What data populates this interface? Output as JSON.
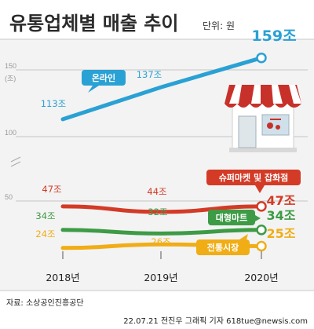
{
  "header": {
    "title": "유통업체별 매출 추이",
    "unit": "단위: 원"
  },
  "footer": {
    "source": "자료: 소상공인진흥공단",
    "credit": "22.07.21 전진우 그래픽 기자 618tue@newsis.com"
  },
  "colors": {
    "online": "#2aa1d4",
    "convenience": "#d33b27",
    "mart": "#3d9b46",
    "market": "#f0ad16",
    "panel": "#f3f3f3"
  },
  "icon": "store-icon",
  "chart_data": {
    "type": "line",
    "x": [
      "2018년",
      "2019년",
      "2020년"
    ],
    "y_ticks": [
      {
        "value": 150,
        "label": "150"
      },
      {
        "value": 100,
        "label": "100"
      },
      {
        "value": 50,
        "label": "50"
      }
    ],
    "y_unit_label": "(조)",
    "ylim": [
      0,
      170
    ],
    "grid": true,
    "series": [
      {
        "name": "온라인",
        "color": "#2aa1d4",
        "values": [
          113,
          137,
          159
        ],
        "labels": [
          "113조",
          "137조",
          "159조"
        ]
      },
      {
        "name": "슈퍼마켓 및 잡화점",
        "color": "#d33b27",
        "values": [
          47,
          44,
          47
        ],
        "labels": [
          "47조",
          "44조",
          "47조"
        ]
      },
      {
        "name": "대형마트",
        "color": "#3d9b46",
        "values": [
          34,
          32,
          34
        ],
        "labels": [
          "34조",
          "32조",
          "34조"
        ]
      },
      {
        "name": "전통시장",
        "color": "#f0ad16",
        "values": [
          24,
          26,
          25
        ],
        "labels": [
          "24조",
          "26조",
          "25조"
        ]
      }
    ]
  }
}
